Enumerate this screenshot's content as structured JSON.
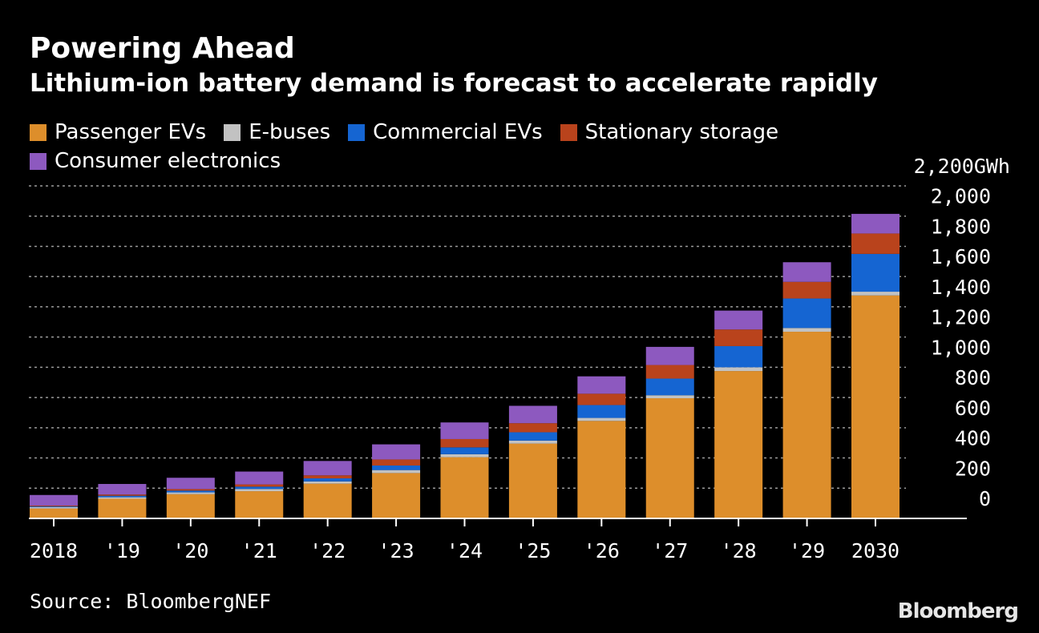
{
  "chart_data": {
    "type": "bar",
    "stacked": true,
    "title": "Powering Ahead",
    "subtitle": "Lithium-ion battery demand is forecast to accelerate rapidly",
    "categories": [
      "2018",
      "'19",
      "'20",
      "'21",
      "'22",
      "'23",
      "'24",
      "'25",
      "'26",
      "'27",
      "'28",
      "'29",
      "2030"
    ],
    "series": [
      {
        "name": "Passenger EVs",
        "color": "#dd8e2b",
        "values": [
          65,
          130,
          160,
          180,
          230,
          300,
          405,
          495,
          645,
          795,
          975,
          1235,
          1475
        ]
      },
      {
        "name": "E-buses",
        "color": "#c2c2c2",
        "values": [
          10,
          10,
          12,
          15,
          15,
          20,
          20,
          20,
          20,
          20,
          25,
          25,
          25
        ]
      },
      {
        "name": "Commercial EVs",
        "color": "#1565d2",
        "values": [
          5,
          10,
          12,
          15,
          20,
          30,
          45,
          55,
          85,
          110,
          140,
          195,
          250
        ]
      },
      {
        "name": "Stationary storage",
        "color": "#b9431c",
        "values": [
          5,
          8,
          10,
          15,
          20,
          40,
          55,
          60,
          75,
          90,
          110,
          110,
          135
        ]
      },
      {
        "name": "Consumer electronics",
        "color": "#8d59bf",
        "values": [
          70,
          70,
          75,
          85,
          95,
          100,
          110,
          115,
          115,
          120,
          125,
          130,
          130
        ]
      }
    ],
    "yaxis": {
      "ticks": [
        0,
        200,
        400,
        600,
        800,
        1000,
        1200,
        1400,
        1600,
        1800,
        2000,
        2200
      ],
      "tick_labels": [
        "0",
        "200",
        "400",
        "600",
        "800",
        "1,000",
        "1,200",
        "1,400",
        "1,600",
        "1,800",
        "2,000",
        "2,200GWh"
      ],
      "range": [
        0,
        2200
      ],
      "position": "right"
    },
    "grid": true,
    "legend_position": "top-left",
    "source": "Source: BloombergNEF",
    "brand": "Bloomberg"
  }
}
